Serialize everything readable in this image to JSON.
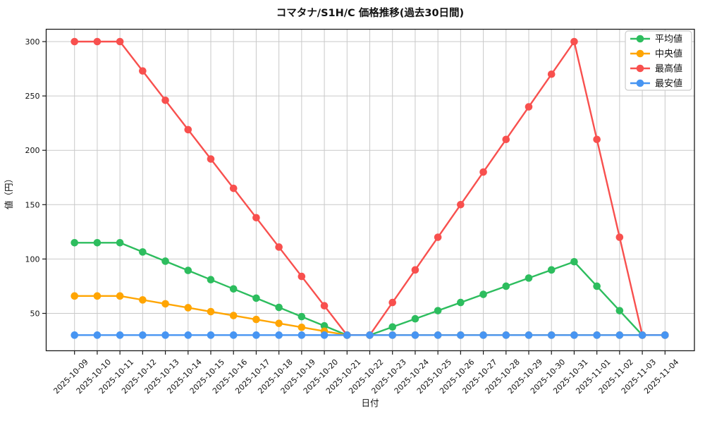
{
  "chart_data": {
    "type": "line",
    "title": "コマタナ/S1H/C 価格推移(過去30日間)",
    "xlabel": "日付",
    "ylabel": "値（円）",
    "grid": true,
    "legend_position": "upper right",
    "x_tick_rotation": 45,
    "ylim": [
      16.5,
      313.5
    ],
    "yticks": [
      50,
      100,
      150,
      200,
      250,
      300
    ],
    "categories": [
      "2025-10-09",
      "2025-10-10",
      "2025-10-11",
      "2025-10-12",
      "2025-10-13",
      "2025-10-14",
      "2025-10-15",
      "2025-10-16",
      "2025-10-17",
      "2025-10-18",
      "2025-10-19",
      "2025-10-20",
      "2025-10-21",
      "2025-10-22",
      "2025-10-23",
      "2025-10-24",
      "2025-10-25",
      "2025-10-26",
      "2025-10-27",
      "2025-10-28",
      "2025-10-29",
      "2025-10-30",
      "2025-10-31",
      "2025-11-01",
      "2025-11-02",
      "2025-11-03",
      "2025-11-04"
    ],
    "series": [
      {
        "name": "平均値",
        "color": "#2dbd5e",
        "values": [
          115,
          115,
          115,
          106.5,
          98,
          89.5,
          81,
          72.5,
          64,
          55.5,
          47,
          38.5,
          30,
          30,
          37.5,
          45,
          52.5,
          60,
          67.5,
          75,
          82.5,
          90,
          97.5,
          75,
          52.5,
          30,
          30
        ]
      },
      {
        "name": "中央値",
        "color": "#ffa502",
        "values": [
          66,
          66,
          66,
          62.4,
          58.8,
          55.2,
          51.6,
          48,
          44.4,
          40.8,
          37.2,
          33.6,
          30,
          30,
          30,
          30,
          30,
          30,
          30,
          30,
          30,
          30,
          30,
          30,
          30,
          30,
          30
        ]
      },
      {
        "name": "最高値",
        "color": "#f8504e",
        "values": [
          300,
          300,
          300,
          273,
          246,
          219,
          192,
          165,
          138,
          111,
          84,
          57,
          30,
          30,
          60,
          90,
          120,
          150,
          180,
          210,
          240,
          270,
          300,
          210,
          120,
          30,
          30
        ]
      },
      {
        "name": "最安値",
        "color": "#4795f2",
        "values": [
          30,
          30,
          30,
          30,
          30,
          30,
          30,
          30,
          30,
          30,
          30,
          30,
          30,
          30,
          30,
          30,
          30,
          30,
          30,
          30,
          30,
          30,
          30,
          30,
          30,
          30,
          30
        ]
      }
    ],
    "colors": {
      "grid": "#c9c9c9",
      "spine": "#1a1a1a",
      "legend_border": "#cccccc",
      "background": "#ffffff"
    }
  }
}
